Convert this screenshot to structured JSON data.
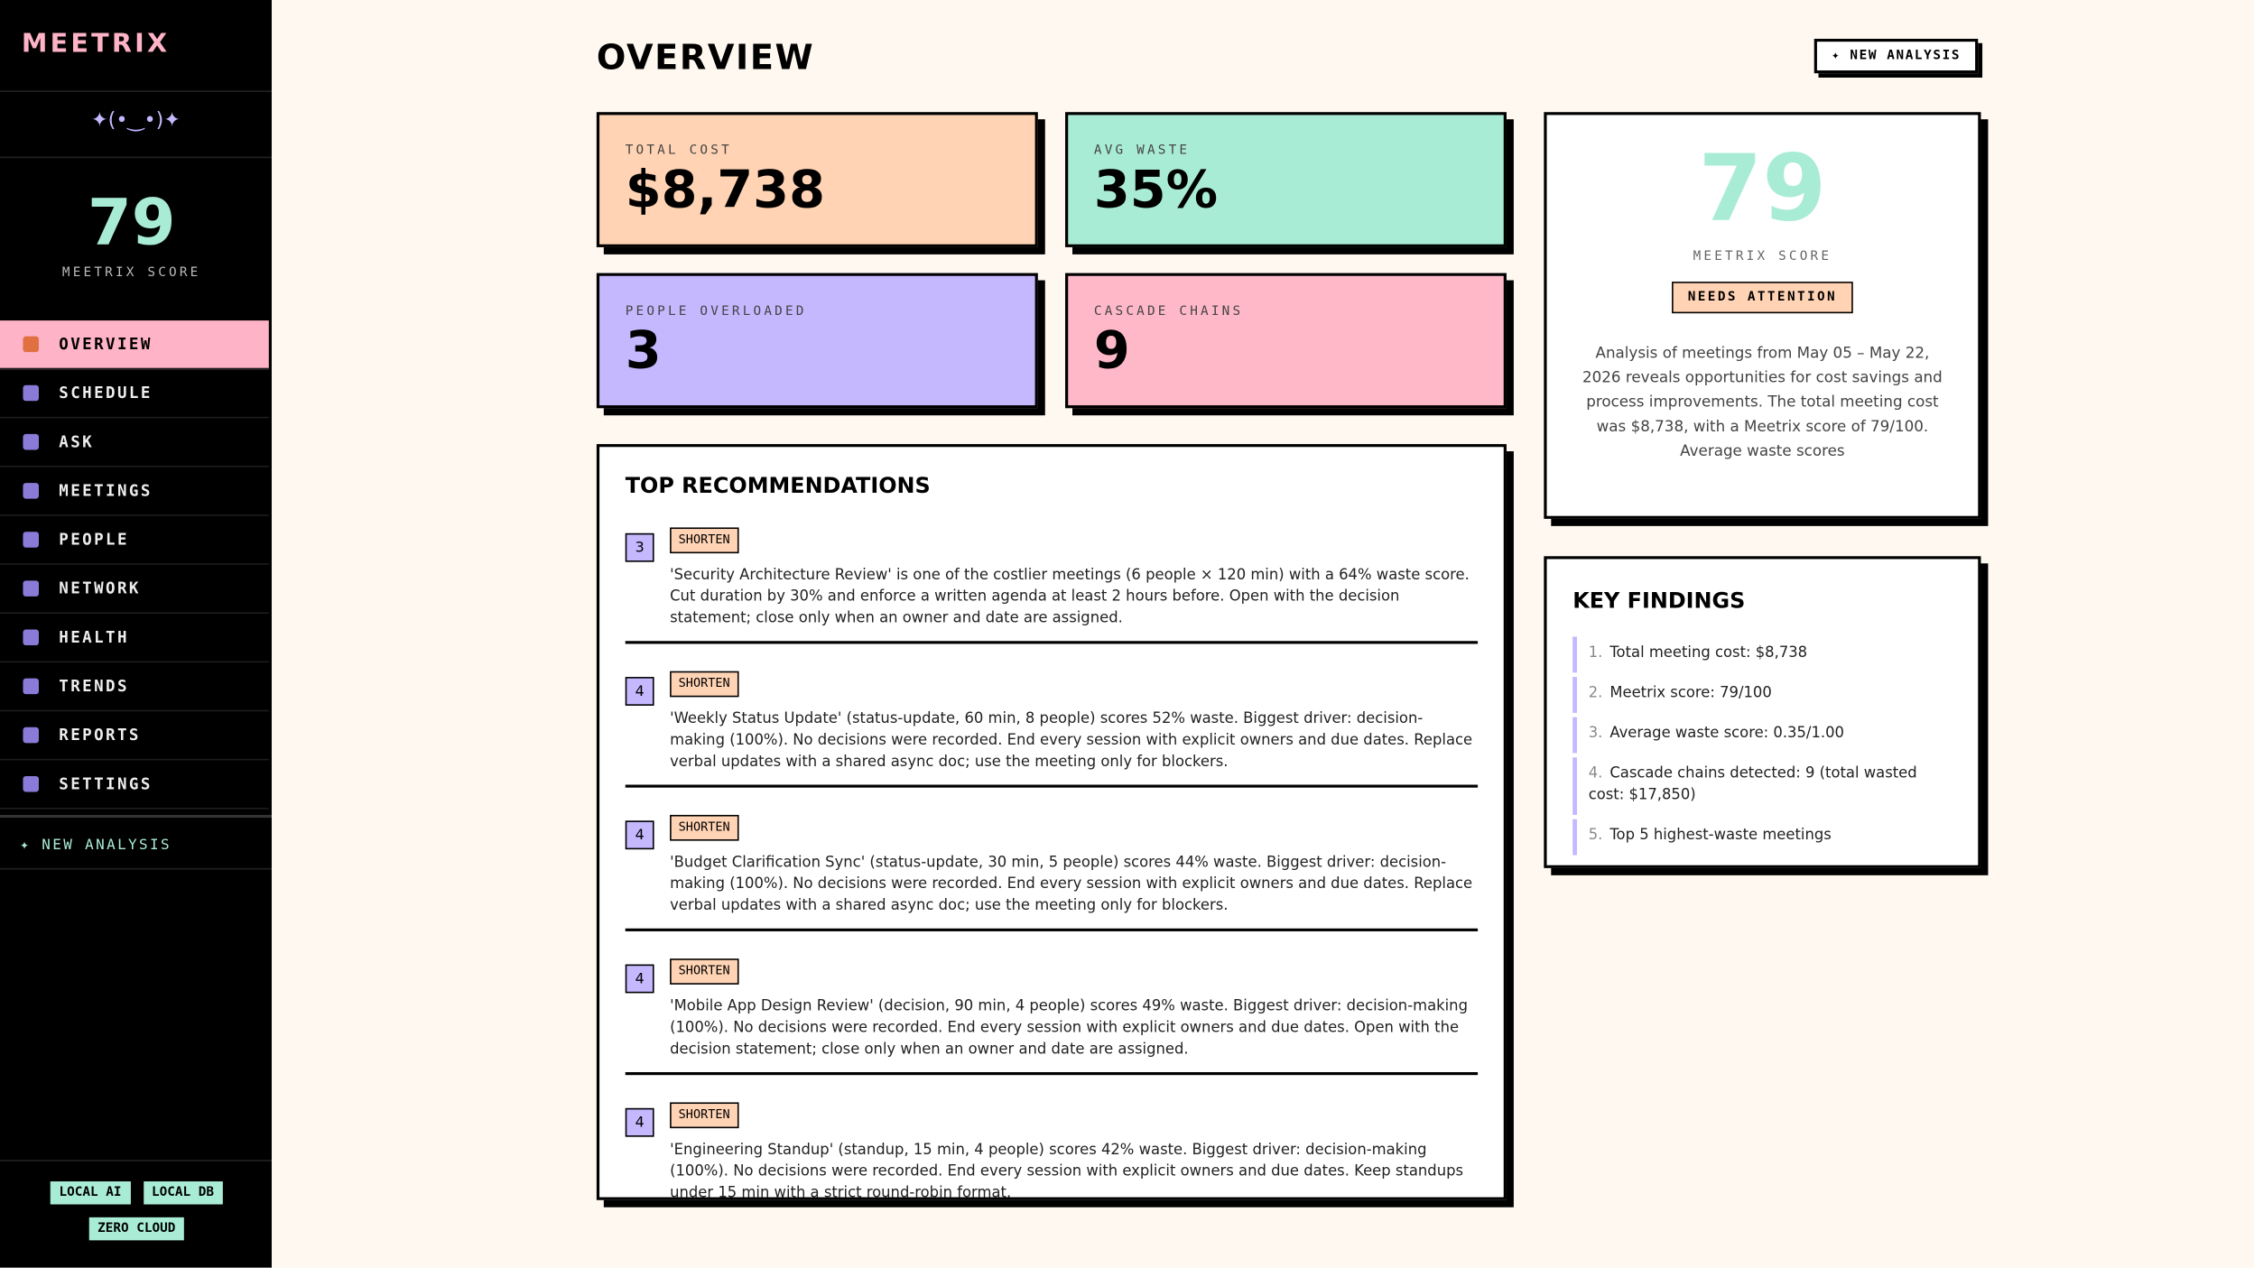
{
  "sidebar": {
    "brand": "MEETRIX",
    "face": "✦(•‿•)✦",
    "score": 79,
    "score_label": "MEETRIX SCORE",
    "nav": [
      "OVERVIEW",
      "SCHEDULE",
      "ASK",
      "MEETINGS",
      "PEOPLE",
      "NETWORK",
      "HEALTH",
      "TRENDS",
      "REPORTS",
      "SETTINGS"
    ],
    "new_analysis": "✦ NEW ANALYSIS",
    "badges": [
      "LOCAL AI",
      "LOCAL DB",
      "ZERO CLOUD"
    ]
  },
  "header": {
    "title": "OVERVIEW",
    "button": "✦ NEW ANALYSIS"
  },
  "stats": [
    {
      "label": "TOTAL COST",
      "value": "$8,738"
    },
    {
      "label": "AVG WASTE",
      "value": "35%"
    },
    {
      "label": "PEOPLE OVERLOADED",
      "value": "3"
    },
    {
      "label": "CASCADE CHAINS",
      "value": "9"
    }
  ],
  "score_card": {
    "score": 79,
    "label": "MEETRIX SCORE",
    "status": "NEEDS ATTENTION",
    "summary": "Analysis of meetings from May 05 – May 22, 2026 reveals opportunities for cost savings and process improvements. The total meeting cost was $8,738, with a Meetrix score of 79/100. Average waste scores"
  },
  "recommendations": {
    "title": "TOP RECOMMENDATIONS",
    "items": [
      {
        "rank": "3",
        "tag": "SHORTEN",
        "text": "'Security Architecture Review' is one of the costlier meetings (6 people × 120 min) with a 64% waste score. Cut duration by 30% and enforce a written agenda at least 2 hours before. Open with the decision statement; close only when an owner and date are assigned."
      },
      {
        "rank": "4",
        "tag": "SHORTEN",
        "text": "'Weekly Status Update' (status-update, 60 min, 8 people) scores 52% waste. Biggest driver: decision-making (100%). No decisions were recorded. End every session with explicit owners and due dates. Replace verbal updates with a shared async doc; use the meeting only for blockers."
      },
      {
        "rank": "4",
        "tag": "SHORTEN",
        "text": "'Budget Clarification Sync' (status-update, 30 min, 5 people) scores 44% waste. Biggest driver: decision-making (100%). No decisions were recorded. End every session with explicit owners and due dates. Replace verbal updates with a shared async doc; use the meeting only for blockers."
      },
      {
        "rank": "4",
        "tag": "SHORTEN",
        "text": "'Mobile App Design Review' (decision, 90 min, 4 people) scores 49% waste. Biggest driver: decision-making (100%). No decisions were recorded. End every session with explicit owners and due dates. Open with the decision statement; close only when an owner and date are assigned."
      },
      {
        "rank": "4",
        "tag": "SHORTEN",
        "text": "'Engineering Standup' (standup, 15 min, 4 people) scores 42% waste. Biggest driver: decision-making (100%). No decisions were recorded. End every session with explicit owners and due dates. Keep standups under 15 min with a strict round-robin format."
      }
    ]
  },
  "findings": {
    "title": "KEY FINDINGS",
    "items": [
      {
        "num": "1.",
        "text": "Total meeting cost: $8,738"
      },
      {
        "num": "2.",
        "text": "Meetrix score: 79/100"
      },
      {
        "num": "3.",
        "text": "Average waste score: 0.35/1.00"
      },
      {
        "num": "4.",
        "text": "Cascade chains detected: 9 (total wasted cost: $17,850)"
      },
      {
        "num": "5.",
        "text": "Top 5 highest-waste meetings"
      }
    ]
  }
}
